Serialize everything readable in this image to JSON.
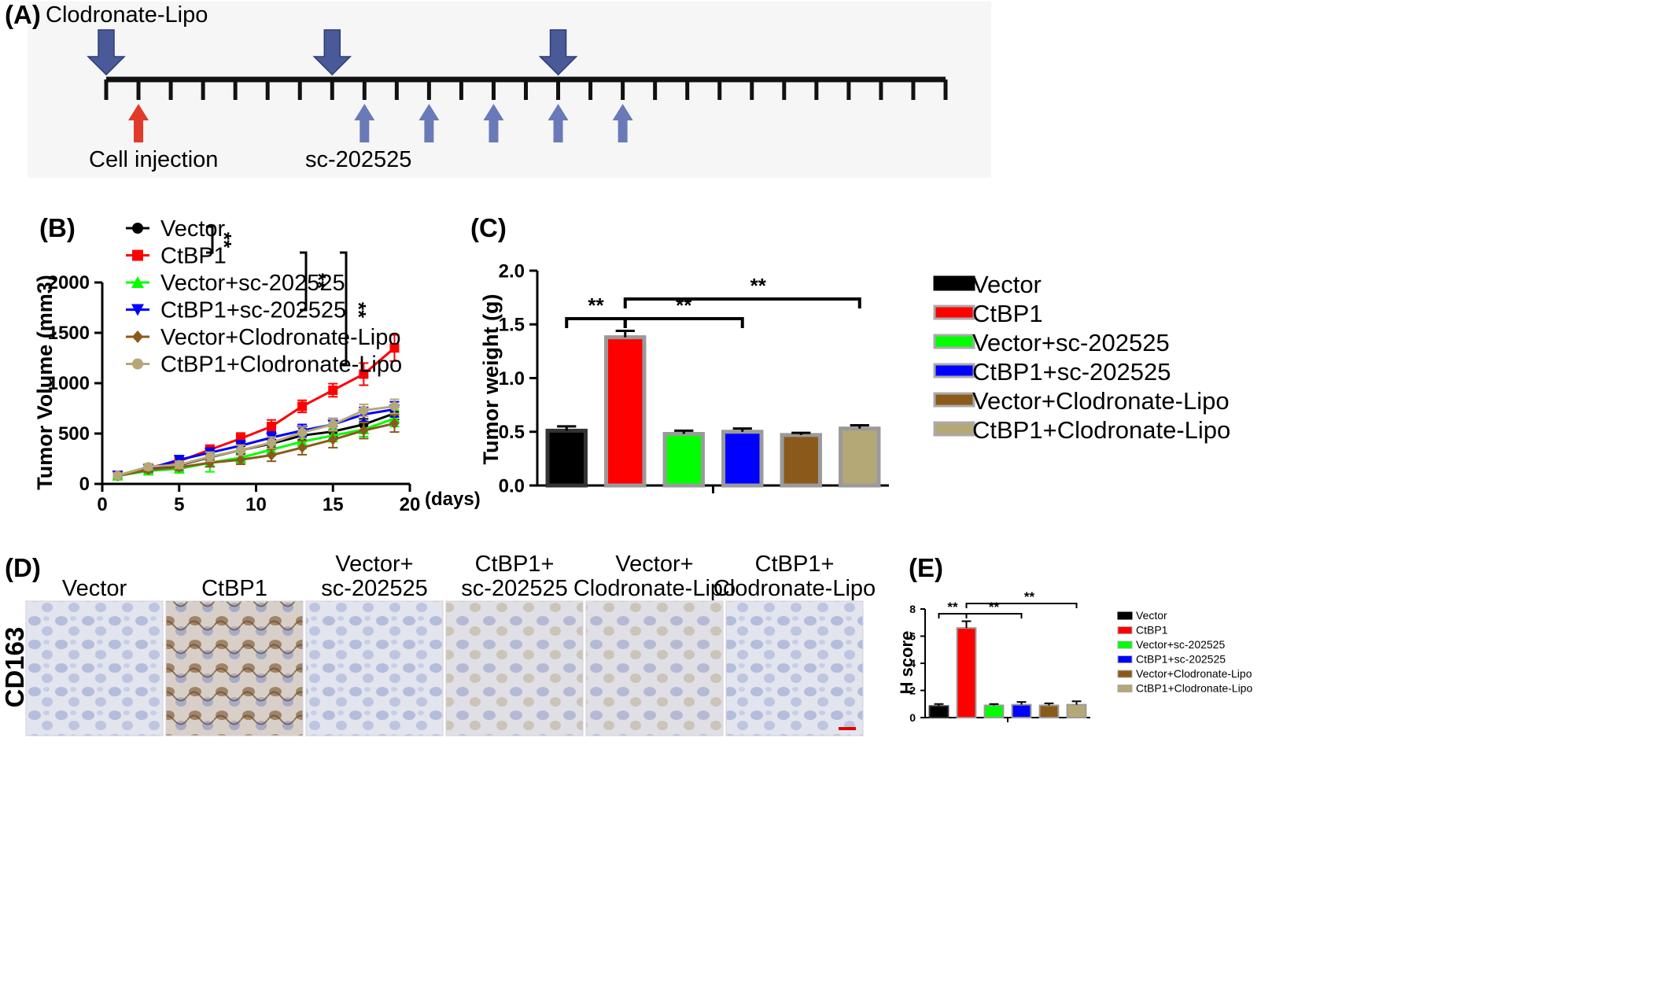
{
  "colors": {
    "vector": "#000000",
    "ctbp1": "#ff0000",
    "vec_sc": "#00ff00",
    "ctbp1_sc": "#0000ff",
    "vec_lipo": "#8b5a1a",
    "ctbp1_lipo": "#b5a877",
    "arrow_big": "#4a5a98",
    "arrow_small": "#6a7ab8",
    "arrow_red": "#e23a2a"
  },
  "panelA": {
    "label": "(A)",
    "clodronate_label": "Clodronate-Lipo",
    "cell_label": "Cell injection",
    "sc_label": "sc-202525"
  },
  "chart_data": [
    {
      "panel": "(B)",
      "type": "line",
      "title": "",
      "xlabel": "(days)",
      "ylabel": "Tumor Volume (mm3)",
      "xlim": [
        0,
        20
      ],
      "ylim": [
        0,
        2000
      ],
      "xticks": [
        0,
        5,
        10,
        15,
        20
      ],
      "yticks": [
        0,
        500,
        1000,
        1500,
        2000
      ],
      "x": [
        1,
        3,
        5,
        7,
        9,
        11,
        13,
        15,
        17,
        19
      ],
      "series": [
        {
          "name": "Vector",
          "color": "#000000",
          "marker": "circle",
          "values": [
            80,
            140,
            185,
            265,
            335,
            400,
            480,
            520,
            590,
            700
          ],
          "err": [
            20,
            25,
            30,
            35,
            40,
            40,
            45,
            50,
            55,
            60
          ]
        },
        {
          "name": "CtBP1",
          "color": "#ff0000",
          "marker": "square",
          "values": [
            85,
            160,
            225,
            340,
            450,
            570,
            770,
            930,
            1090,
            1350
          ],
          "err": [
            20,
            30,
            40,
            45,
            55,
            65,
            60,
            65,
            110,
            130
          ]
        },
        {
          "name": "Vector+sc-202525",
          "color": "#00ff00",
          "marker": "triangle-up",
          "values": [
            80,
            130,
            150,
            210,
            260,
            340,
            420,
            480,
            540,
            650
          ],
          "err": [
            20,
            30,
            40,
            90,
            50,
            60,
            70,
            60,
            70,
            80
          ]
        },
        {
          "name": "CtBP1+sc-202525",
          "color": "#0000ff",
          "marker": "triangle-down",
          "values": [
            85,
            150,
            240,
            310,
            380,
            460,
            530,
            590,
            690,
            740
          ],
          "err": [
            20,
            30,
            40,
            45,
            50,
            55,
            60,
            60,
            70,
            75
          ]
        },
        {
          "name": "Vector+Clodronate-Lipo",
          "color": "#8b5a1a",
          "marker": "diamond",
          "values": [
            80,
            140,
            165,
            210,
            240,
            285,
            360,
            440,
            530,
            600
          ],
          "err": [
            20,
            25,
            30,
            40,
            45,
            60,
            70,
            80,
            80,
            85
          ]
        },
        {
          "name": "CtBP1+Clodronate-Lipo",
          "color": "#b5a877",
          "marker": "circle",
          "values": [
            85,
            170,
            190,
            270,
            335,
            410,
            510,
            590,
            730,
            770
          ],
          "err": [
            20,
            30,
            35,
            45,
            50,
            55,
            55,
            60,
            60,
            70
          ]
        }
      ],
      "significance": [
        "**",
        "**",
        "**"
      ]
    },
    {
      "panel": "(C)",
      "type": "bar",
      "title": "",
      "xlabel": "",
      "ylabel": "Tumor weight (g)",
      "ylim": [
        0,
        2.0
      ],
      "yticks": [
        "0.0",
        "0.5",
        "1.0",
        "1.5",
        "2.0"
      ],
      "categories": [
        "Vector",
        "CtBP1",
        "Vector+sc-202525",
        "CtBP1+sc-202525",
        "Vector+Clodronate-Lipo",
        "CtBP1+Clodronate-Lipo"
      ],
      "values": [
        0.51,
        1.38,
        0.48,
        0.5,
        0.47,
        0.53
      ],
      "err": [
        0.04,
        0.06,
        0.03,
        0.03,
        0.02,
        0.03
      ],
      "colors": [
        "#000000",
        "#ff0000",
        "#00ff00",
        "#0000ff",
        "#8b5a1a",
        "#b5a877"
      ],
      "significance": [
        "**",
        "**",
        "**"
      ]
    },
    {
      "panel": "(E)",
      "type": "bar",
      "title": "",
      "xlabel": "",
      "ylabel": "H score",
      "ylim": [
        0,
        8
      ],
      "yticks": [
        "0",
        "2",
        "4",
        "6",
        "8"
      ],
      "categories": [
        "Vector",
        "CtBP1",
        "Vector+sc-202525",
        "CtBP1+sc-202525",
        "Vector+Clodronate-Lipo",
        "CtBP1+Clodronate-Lipo"
      ],
      "values": [
        0.85,
        6.6,
        0.9,
        0.95,
        0.9,
        0.95
      ],
      "err": [
        0.15,
        0.5,
        0.1,
        0.2,
        0.15,
        0.25
      ],
      "colors": [
        "#000000",
        "#ff0000",
        "#00ff00",
        "#0000ff",
        "#8b5a1a",
        "#b5a877"
      ],
      "significance": [
        "**",
        "**",
        "**"
      ]
    }
  ],
  "panelD": {
    "label": "(D)",
    "row_label": "CD163",
    "captions": [
      [
        "Vector"
      ],
      [
        "CtBP1"
      ],
      [
        "Vector+",
        "sc-202525"
      ],
      [
        "CtBP1+",
        "sc-202525"
      ],
      [
        "Vector+",
        "Clodronate-Lipo"
      ],
      [
        "CtBP1+",
        "Clodronate-Lipo"
      ]
    ]
  }
}
